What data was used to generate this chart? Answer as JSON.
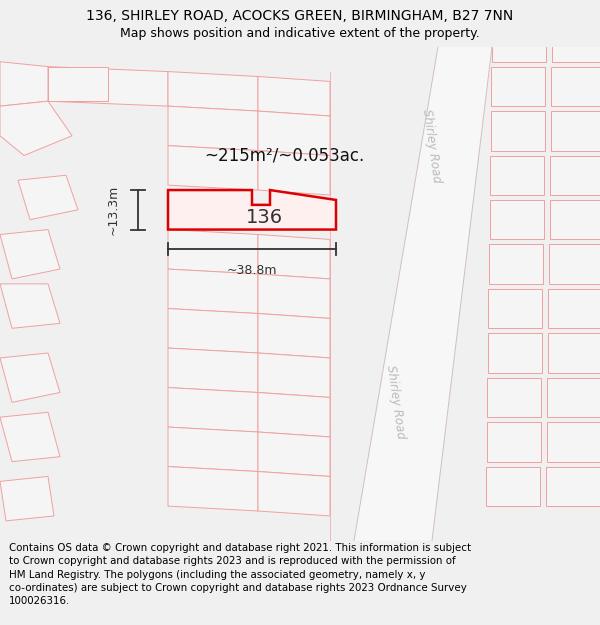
{
  "title_line1": "136, SHIRLEY ROAD, ACOCKS GREEN, BIRMINGHAM, B27 7NN",
  "title_line2": "Map shows position and indicative extent of the property.",
  "footer_text": "Contains OS data © Crown copyright and database right 2021. This information is subject to Crown copyright and database rights 2023 and is reproduced with the permission of HM Land Registry. The polygons (including the associated geometry, namely x, y co-ordinates) are subject to Crown copyright and database rights 2023 Ordnance Survey 100026316.",
  "area_label": "~215m²/~0.053ac.",
  "property_number": "136",
  "dim_width": "~38.8m",
  "dim_height": "~13.3m",
  "road_label_top": "Shirley Road",
  "road_label_bottom": "Shirley Road",
  "bg_color": "#f0f0f0",
  "map_bg": "#f7f7f7",
  "title_fontsize": 10,
  "footer_fontsize": 7.5,
  "other_plot_fill": "#f5f5f5",
  "other_plot_edge": "#f0a0a0",
  "main_plot_edge": "#dd0000",
  "main_plot_fill": "none",
  "dim_color": "#333333",
  "text_color": "#333333"
}
